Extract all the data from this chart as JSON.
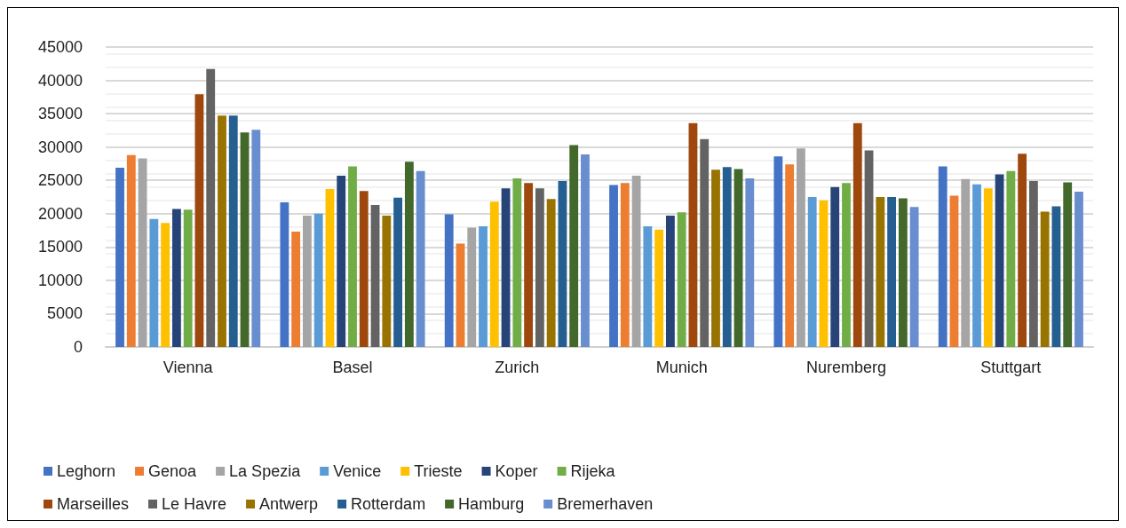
{
  "chart_data": {
    "type": "bar",
    "categories": [
      "Vienna",
      "Basel",
      "Zurich",
      "Munich",
      "Nuremberg",
      "Stuttgart"
    ],
    "series": [
      {
        "name": "Leghorn",
        "color": "#4472c4",
        "values": [
          26900,
          21700,
          19900,
          24300,
          28600,
          27100
        ]
      },
      {
        "name": "Genoa",
        "color": "#ed7d31",
        "values": [
          28800,
          17300,
          15500,
          24600,
          27400,
          22700
        ]
      },
      {
        "name": "La Spezia",
        "color": "#a5a5a5",
        "values": [
          28300,
          19700,
          17900,
          25700,
          29800,
          25200
        ]
      },
      {
        "name": "Venice",
        "color": "#5b9bd5",
        "values": [
          19200,
          20000,
          18100,
          18100,
          22500,
          24400
        ]
      },
      {
        "name": "Trieste",
        "color": "#ffc000",
        "values": [
          18600,
          23700,
          21800,
          17600,
          22000,
          23800
        ]
      },
      {
        "name": "Koper",
        "color": "#264478",
        "values": [
          20700,
          25700,
          23800,
          19700,
          24000,
          25900
        ]
      },
      {
        "name": "Rijeka",
        "color": "#70ad47",
        "values": [
          20600,
          27100,
          25300,
          20200,
          24600,
          26400
        ]
      },
      {
        "name": "Marseilles",
        "color": "#9e480e",
        "values": [
          37900,
          23400,
          24600,
          33600,
          33600,
          29000
        ]
      },
      {
        "name": "Le Havre",
        "color": "#636363",
        "values": [
          41700,
          21300,
          23800,
          31200,
          29500,
          24900
        ]
      },
      {
        "name": "Antwerp",
        "color": "#997300",
        "values": [
          34700,
          19700,
          22200,
          26600,
          22500,
          20300
        ]
      },
      {
        "name": "Rotterdam",
        "color": "#255e91",
        "values": [
          34700,
          22400,
          24900,
          27000,
          22500,
          21100
        ]
      },
      {
        "name": "Hamburg",
        "color": "#43682b",
        "values": [
          32200,
          27800,
          30300,
          26700,
          22300,
          24700
        ]
      },
      {
        "name": "Bremerhaven",
        "color": "#698ed0",
        "values": [
          32600,
          26400,
          28900,
          25300,
          21000,
          23300
        ]
      }
    ],
    "ylim": [
      0,
      45000
    ],
    "yticks": [
      0,
      5000,
      10000,
      15000,
      20000,
      25000,
      30000,
      35000,
      40000,
      45000
    ],
    "grid": "y",
    "legend": "bottom"
  }
}
